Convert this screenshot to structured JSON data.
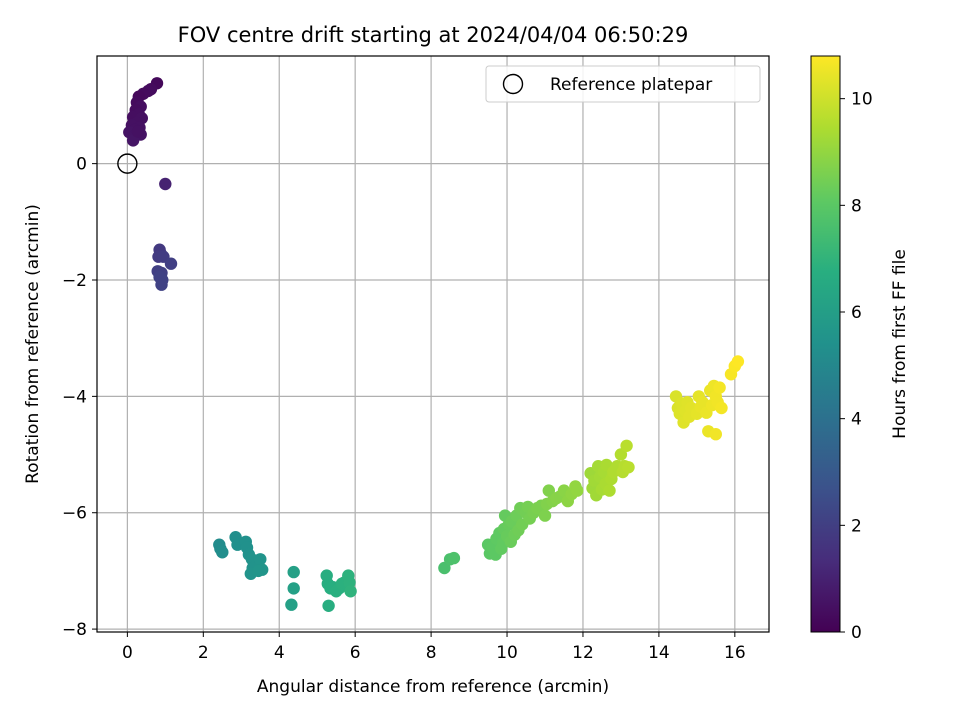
{
  "chart_data": {
    "type": "scatter",
    "title": "FOV centre drift starting at 2024/04/04 06:50:29",
    "xlabel": "Angular distance from reference (arcmin)",
    "ylabel": "Rotation from reference (arcmin)",
    "xlim": [
      -0.8,
      16.9
    ],
    "ylim": [
      -8.05,
      1.85
    ],
    "xticks": [
      0,
      2,
      4,
      6,
      8,
      10,
      12,
      14,
      16
    ],
    "yticks": [
      0,
      -2,
      -4,
      -6,
      -8
    ],
    "grid": true,
    "legend": {
      "position": "top-right",
      "entries": [
        "Reference platepar"
      ]
    },
    "reference_point": {
      "x": 0,
      "y": 0
    },
    "colorbar": {
      "label": "Hours from first FF file",
      "range": [
        0,
        10.8
      ],
      "ticks": [
        0,
        2,
        4,
        6,
        8,
        10
      ],
      "colormap": "viridis"
    },
    "points": [
      [
        0.78,
        1.38,
        0.2
      ],
      [
        0.62,
        1.28,
        0.3
      ],
      [
        0.55,
        1.25,
        0.35
      ],
      [
        0.42,
        1.2,
        0.3
      ],
      [
        0.3,
        1.15,
        0.25
      ],
      [
        0.25,
        1.05,
        0.3
      ],
      [
        0.35,
        0.98,
        0.4
      ],
      [
        0.22,
        0.92,
        0.35
      ],
      [
        0.3,
        0.85,
        0.4
      ],
      [
        0.15,
        0.8,
        0.4
      ],
      [
        0.38,
        0.78,
        0.45
      ],
      [
        0.25,
        0.7,
        0.45
      ],
      [
        0.12,
        0.66,
        0.5
      ],
      [
        0.32,
        0.62,
        0.5
      ],
      [
        0.2,
        0.58,
        0.5
      ],
      [
        0.05,
        0.54,
        0.55
      ],
      [
        0.35,
        0.5,
        0.55
      ],
      [
        0.18,
        0.47,
        0.55
      ],
      [
        0.15,
        0.4,
        0.6
      ],
      [
        0.28,
        0.55,
        0.5
      ],
      [
        1.0,
        -0.35,
        1.0
      ],
      [
        0.85,
        -1.48,
        1.8
      ],
      [
        0.88,
        -1.55,
        1.8
      ],
      [
        0.82,
        -1.6,
        1.85
      ],
      [
        0.95,
        -1.6,
        1.9
      ],
      [
        1.15,
        -1.72,
        2.0
      ],
      [
        0.8,
        -1.85,
        2.0
      ],
      [
        0.9,
        -1.88,
        2.05
      ],
      [
        0.85,
        -1.95,
        2.1
      ],
      [
        0.92,
        -2.0,
        2.1
      ],
      [
        0.9,
        -2.08,
        2.1
      ],
      [
        2.42,
        -6.55,
        5.2
      ],
      [
        2.45,
        -6.62,
        5.2
      ],
      [
        2.5,
        -6.68,
        5.25
      ],
      [
        2.85,
        -6.42,
        5.3
      ],
      [
        2.9,
        -6.55,
        5.35
      ],
      [
        3.12,
        -6.5,
        5.4
      ],
      [
        3.15,
        -6.6,
        5.4
      ],
      [
        3.2,
        -6.72,
        5.45
      ],
      [
        3.28,
        -6.8,
        5.5
      ],
      [
        3.35,
        -6.88,
        5.5
      ],
      [
        3.3,
        -6.95,
        5.5
      ],
      [
        3.5,
        -6.8,
        5.55
      ],
      [
        3.55,
        -6.98,
        5.6
      ],
      [
        3.25,
        -7.05,
        5.55
      ],
      [
        3.45,
        -7.0,
        5.6
      ],
      [
        4.38,
        -7.02,
        6.1
      ],
      [
        4.38,
        -7.3,
        6.1
      ],
      [
        4.32,
        -7.58,
        6.1
      ],
      [
        5.25,
        -7.08,
        6.7
      ],
      [
        5.28,
        -7.22,
        6.7
      ],
      [
        5.35,
        -7.3,
        6.75
      ],
      [
        5.42,
        -7.28,
        6.75
      ],
      [
        5.5,
        -7.35,
        6.8
      ],
      [
        5.58,
        -7.3,
        6.8
      ],
      [
        5.65,
        -7.22,
        6.85
      ],
      [
        5.72,
        -7.2,
        6.85
      ],
      [
        5.82,
        -7.08,
        6.9
      ],
      [
        5.85,
        -7.2,
        6.9
      ],
      [
        5.88,
        -7.35,
        6.95
      ],
      [
        5.3,
        -7.6,
        6.7
      ],
      [
        8.35,
        -6.95,
        7.6
      ],
      [
        8.5,
        -6.8,
        7.65
      ],
      [
        8.6,
        -6.78,
        7.7
      ],
      [
        9.5,
        -6.55,
        8.0
      ],
      [
        9.55,
        -6.7,
        8.0
      ],
      [
        9.62,
        -6.6,
        8.05
      ],
      [
        9.7,
        -6.72,
        8.05
      ],
      [
        9.72,
        -6.45,
        8.1
      ],
      [
        9.8,
        -6.35,
        8.1
      ],
      [
        9.85,
        -6.62,
        8.15
      ],
      [
        9.9,
        -6.52,
        8.15
      ],
      [
        9.92,
        -6.28,
        8.2
      ],
      [
        9.95,
        -6.05,
        8.2
      ],
      [
        10.0,
        -6.4,
        8.25
      ],
      [
        10.05,
        -6.2,
        8.25
      ],
      [
        10.1,
        -6.5,
        8.3
      ],
      [
        10.12,
        -6.15,
        8.3
      ],
      [
        10.2,
        -6.38,
        8.35
      ],
      [
        10.25,
        -6.05,
        8.35
      ],
      [
        10.3,
        -6.3,
        8.4
      ],
      [
        10.35,
        -5.92,
        8.4
      ],
      [
        10.4,
        -6.2,
        8.45
      ],
      [
        10.5,
        -6.0,
        8.45
      ],
      [
        10.55,
        -5.9,
        8.5
      ],
      [
        10.6,
        -6.1,
        8.5
      ],
      [
        10.7,
        -6.0,
        8.55
      ],
      [
        10.8,
        -5.92,
        8.6
      ],
      [
        10.9,
        -5.88,
        8.6
      ],
      [
        11.0,
        -6.05,
        8.65
      ],
      [
        11.05,
        -5.85,
        8.7
      ],
      [
        11.1,
        -5.62,
        8.7
      ],
      [
        11.2,
        -5.8,
        8.75
      ],
      [
        11.3,
        -5.75,
        8.8
      ],
      [
        11.4,
        -5.72,
        8.8
      ],
      [
        11.5,
        -5.62,
        8.85
      ],
      [
        11.6,
        -5.8,
        8.9
      ],
      [
        11.7,
        -5.68,
        8.95
      ],
      [
        11.8,
        -5.55,
        9.0
      ],
      [
        11.85,
        -5.62,
        9.0
      ],
      [
        12.2,
        -5.32,
        9.2
      ],
      [
        12.25,
        -5.58,
        9.2
      ],
      [
        12.3,
        -5.45,
        9.25
      ],
      [
        12.35,
        -5.7,
        9.25
      ],
      [
        12.4,
        -5.2,
        9.3
      ],
      [
        12.45,
        -5.38,
        9.3
      ],
      [
        12.5,
        -5.6,
        9.35
      ],
      [
        12.55,
        -5.3,
        9.35
      ],
      [
        12.6,
        -5.5,
        9.4
      ],
      [
        12.62,
        -5.18,
        9.4
      ],
      [
        12.7,
        -5.62,
        9.45
      ],
      [
        12.75,
        -5.42,
        9.45
      ],
      [
        12.8,
        -5.3,
        9.5
      ],
      [
        12.9,
        -5.2,
        9.5
      ],
      [
        13.0,
        -5.0,
        9.55
      ],
      [
        13.05,
        -5.3,
        9.6
      ],
      [
        13.1,
        -5.2,
        9.6
      ],
      [
        13.15,
        -4.85,
        9.65
      ],
      [
        13.2,
        -5.22,
        9.65
      ],
      [
        14.45,
        -4.0,
        10.2
      ],
      [
        14.5,
        -4.2,
        10.2
      ],
      [
        14.55,
        -4.3,
        10.25
      ],
      [
        14.6,
        -4.12,
        10.25
      ],
      [
        14.65,
        -4.45,
        10.3
      ],
      [
        14.7,
        -4.25,
        10.3
      ],
      [
        14.75,
        -4.1,
        10.3
      ],
      [
        14.8,
        -4.35,
        10.35
      ],
      [
        14.85,
        -4.2,
        10.35
      ],
      [
        15.0,
        -4.3,
        10.4
      ],
      [
        15.05,
        -4.0,
        10.4
      ],
      [
        15.1,
        -4.18,
        10.45
      ],
      [
        15.15,
        -4.1,
        10.45
      ],
      [
        15.25,
        -4.28,
        10.5
      ],
      [
        15.3,
        -4.6,
        10.5
      ],
      [
        15.35,
        -3.9,
        10.5
      ],
      [
        15.4,
        -4.15,
        10.55
      ],
      [
        15.45,
        -3.82,
        10.55
      ],
      [
        15.5,
        -4.0,
        10.6
      ],
      [
        15.5,
        -4.65,
        10.6
      ],
      [
        15.55,
        -4.1,
        10.6
      ],
      [
        15.6,
        -3.85,
        10.65
      ],
      [
        15.65,
        -4.2,
        10.65
      ],
      [
        15.9,
        -3.62,
        10.7
      ],
      [
        16.0,
        -3.48,
        10.75
      ],
      [
        16.08,
        -3.4,
        10.8
      ]
    ]
  }
}
